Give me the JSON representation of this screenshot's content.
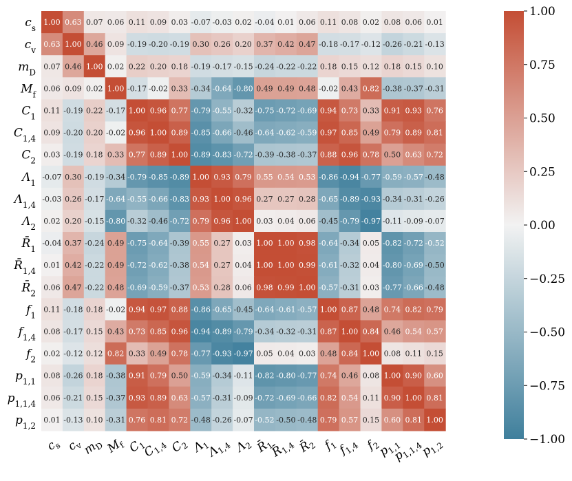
{
  "chart_data": {
    "type": "heatmap",
    "title": "",
    "xlabel": "",
    "ylabel": "",
    "row_labels": [
      "c_s",
      "c_v",
      "m_D",
      "M_f",
      "C_1",
      "C_{1,4}",
      "C_2",
      "Λ_1",
      "Λ_{1,4}",
      "Λ_2",
      "R̄_1",
      "R̄_{1,4}",
      "R̄_2",
      "f_1",
      "f_{1,4}",
      "f_2",
      "p_{1,1}",
      "p_{1,1,4}",
      "p_{1,2}"
    ],
    "col_labels": [
      "c_s",
      "c_v",
      "m_D",
      "M_f",
      "C_1",
      "C_{1,4}",
      "C_2",
      "Λ_1",
      "Λ_{1,4}",
      "Λ_2",
      "R̄_1",
      "R̄_{1,4}",
      "R̄_2",
      "f_1",
      "f_{1,4}",
      "f_2",
      "p_{1,1}",
      "p_{1,1,4}",
      "p_{1,2}"
    ],
    "values": [
      [
        1.0,
        0.63,
        0.07,
        0.06,
        0.11,
        0.09,
        0.03,
        -0.07,
        -0.03,
        0.02,
        -0.04,
        0.01,
        0.06,
        0.11,
        0.08,
        0.02,
        0.08,
        0.06,
        0.01
      ],
      [
        0.63,
        1.0,
        0.46,
        0.09,
        -0.19,
        -0.2,
        -0.19,
        0.3,
        0.26,
        0.2,
        0.37,
        0.42,
        0.47,
        -0.18,
        -0.17,
        -0.12,
        -0.26,
        -0.21,
        -0.13
      ],
      [
        0.07,
        0.46,
        1.0,
        0.02,
        0.22,
        0.2,
        0.18,
        -0.19,
        -0.17,
        -0.15,
        -0.24,
        -0.22,
        -0.22,
        0.18,
        0.15,
        0.12,
        0.18,
        0.15,
        0.1
      ],
      [
        0.06,
        0.09,
        0.02,
        1.0,
        -0.17,
        -0.02,
        0.33,
        -0.34,
        -0.64,
        -0.8,
        0.49,
        0.49,
        0.48,
        -0.02,
        0.43,
        0.82,
        -0.38,
        -0.37,
        -0.31
      ],
      [
        0.11,
        -0.19,
        0.22,
        -0.17,
        1.0,
        0.96,
        0.77,
        -0.79,
        -0.55,
        -0.32,
        -0.75,
        -0.72,
        -0.69,
        0.94,
        0.73,
        0.33,
        0.91,
        0.93,
        0.76
      ],
      [
        0.09,
        -0.2,
        0.2,
        -0.02,
        0.96,
        1.0,
        0.89,
        -0.85,
        -0.66,
        -0.46,
        -0.64,
        -0.62,
        -0.59,
        0.97,
        0.85,
        0.49,
        0.79,
        0.89,
        0.81
      ],
      [
        0.03,
        -0.19,
        0.18,
        0.33,
        0.77,
        0.89,
        1.0,
        -0.89,
        -0.83,
        -0.72,
        -0.39,
        -0.38,
        -0.37,
        0.88,
        0.96,
        0.78,
        0.5,
        0.63,
        0.72
      ],
      [
        -0.07,
        0.3,
        -0.19,
        -0.34,
        -0.79,
        -0.85,
        -0.89,
        1.0,
        0.93,
        0.79,
        0.55,
        0.54,
        0.53,
        -0.86,
        -0.94,
        -0.77,
        -0.59,
        -0.57,
        -0.48
      ],
      [
        -0.03,
        0.26,
        -0.17,
        -0.64,
        -0.55,
        -0.66,
        -0.83,
        0.93,
        1.0,
        0.96,
        0.27,
        0.27,
        0.28,
        -0.65,
        -0.89,
        -0.93,
        -0.34,
        -0.31,
        -0.26
      ],
      [
        0.02,
        0.2,
        -0.15,
        -0.8,
        -0.32,
        -0.46,
        -0.72,
        0.79,
        0.96,
        1.0,
        0.03,
        0.04,
        0.06,
        -0.45,
        -0.79,
        -0.97,
        -0.11,
        -0.09,
        -0.07
      ],
      [
        -0.04,
        0.37,
        -0.24,
        0.49,
        -0.75,
        -0.64,
        -0.39,
        0.55,
        0.27,
        0.03,
        1.0,
        1.0,
        0.98,
        -0.64,
        -0.34,
        0.05,
        -0.82,
        -0.72,
        -0.52
      ],
      [
        0.01,
        0.42,
        -0.22,
        0.49,
        -0.72,
        -0.62,
        -0.38,
        0.54,
        0.27,
        0.04,
        1.0,
        1.0,
        0.99,
        -0.61,
        -0.32,
        0.04,
        -0.8,
        -0.69,
        -0.5
      ],
      [
        0.06,
        0.47,
        -0.22,
        0.48,
        -0.69,
        -0.59,
        -0.37,
        0.53,
        0.28,
        0.06,
        0.98,
        0.99,
        1.0,
        -0.57,
        -0.31,
        0.03,
        -0.77,
        -0.66,
        -0.48
      ],
      [
        0.11,
        -0.18,
        0.18,
        -0.02,
        0.94,
        0.97,
        0.88,
        -0.86,
        -0.65,
        -0.45,
        -0.64,
        -0.61,
        -0.57,
        1.0,
        0.87,
        0.48,
        0.74,
        0.82,
        0.79
      ],
      [
        0.08,
        -0.17,
        0.15,
        0.43,
        0.73,
        0.85,
        0.96,
        -0.94,
        -0.89,
        -0.79,
        -0.34,
        -0.32,
        -0.31,
        0.87,
        1.0,
        0.84,
        0.46,
        0.54,
        0.57
      ],
      [
        0.02,
        -0.12,
        0.12,
        0.82,
        0.33,
        0.49,
        0.78,
        -0.77,
        -0.93,
        -0.97,
        0.05,
        0.04,
        0.03,
        0.48,
        0.84,
        1.0,
        0.08,
        0.11,
        0.15
      ],
      [
        0.08,
        -0.26,
        0.18,
        -0.38,
        0.91,
        0.79,
        0.5,
        -0.59,
        -0.34,
        -0.11,
        -0.82,
        -0.8,
        -0.77,
        0.74,
        0.46,
        0.08,
        1.0,
        0.9,
        0.6
      ],
      [
        0.06,
        -0.21,
        0.15,
        -0.37,
        0.93,
        0.89,
        0.63,
        -0.57,
        -0.31,
        -0.09,
        -0.72,
        -0.69,
        -0.66,
        0.82,
        0.54,
        0.11,
        0.9,
        1.0,
        0.81
      ],
      [
        0.01,
        -0.13,
        0.1,
        -0.31,
        0.76,
        0.81,
        0.72,
        -0.48,
        -0.26,
        -0.07,
        -0.52,
        -0.5,
        -0.48,
        0.79,
        0.57,
        0.15,
        0.6,
        0.81,
        1.0
      ]
    ],
    "vmin": -1.0,
    "vmax": 1.0,
    "colormap": {
      "low": "#3f7f9c",
      "mid": "#f2f2f2",
      "high": "#c44e35"
    },
    "colorbar": {
      "ticks": [
        1.0,
        0.75,
        0.5,
        0.25,
        0.0,
        -0.25,
        -0.5,
        -0.75,
        -1.0
      ],
      "tick_labels": [
        "1.00",
        "0.75",
        "0.50",
        "0.25",
        "0.00",
        "−0.25",
        "−0.50",
        "−0.75",
        "−1.00"
      ],
      "placement": "right"
    },
    "value_format": "2 decimals"
  }
}
